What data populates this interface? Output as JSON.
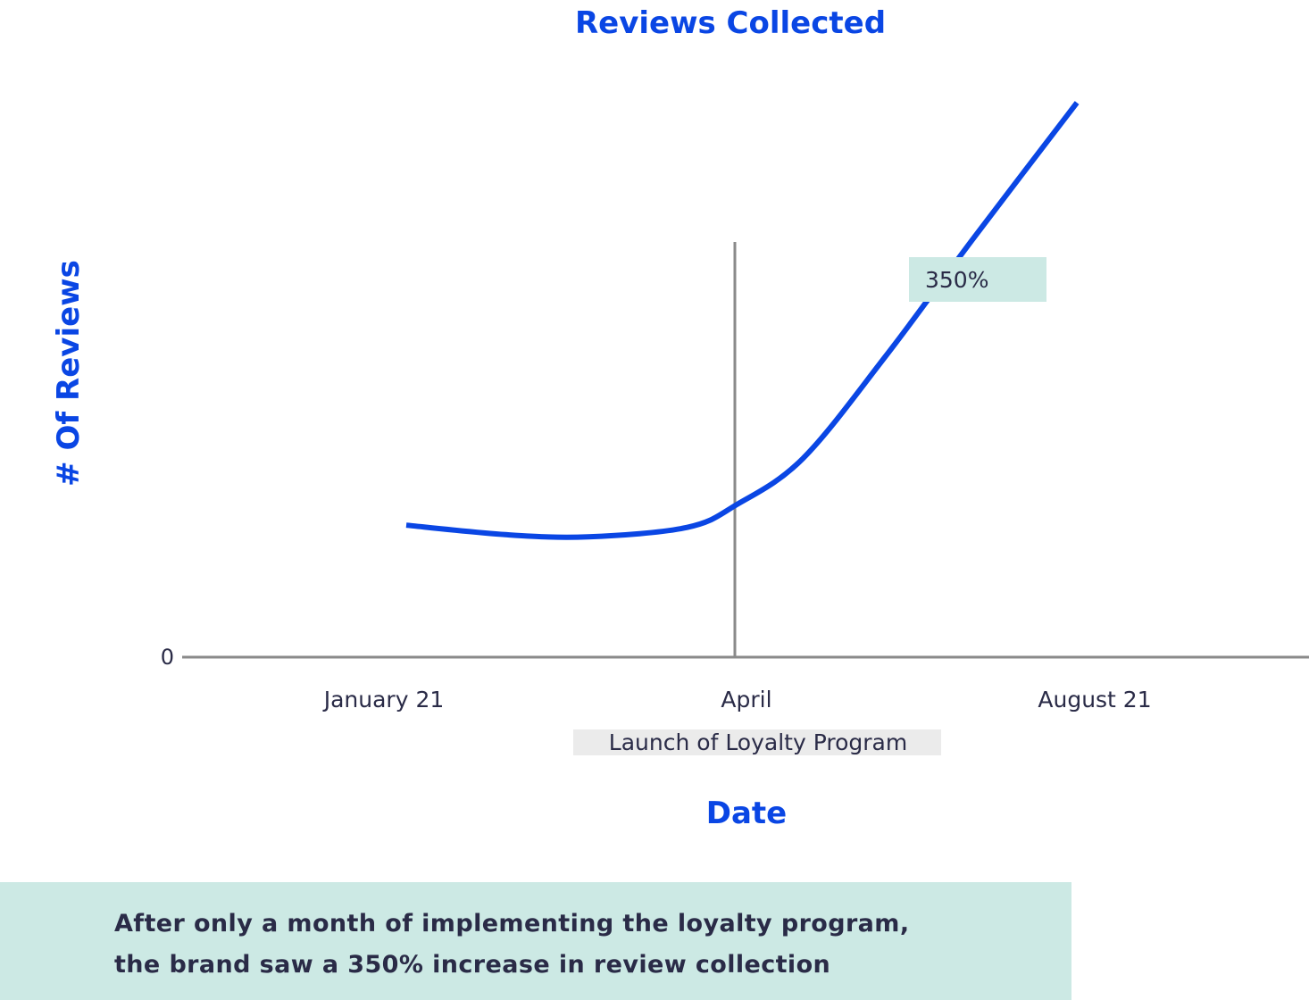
{
  "chart_data": {
    "type": "line",
    "title": "Reviews Collected",
    "xlabel": "Date",
    "ylabel": "# Of Reviews",
    "x_ticks": [
      "January 21",
      "April",
      "August 21"
    ],
    "y_ticks": [
      "0"
    ],
    "ylim": [
      0,
      100
    ],
    "grid": false,
    "legend": "none",
    "series": [
      {
        "color": "#0a46e4",
        "points": [
          {
            "x": 0.0,
            "y": 23.8
          },
          {
            "x": 0.3,
            "y": 22.1
          },
          {
            "x": 0.55,
            "y": 21.7
          },
          {
            "x": 0.85,
            "y": 23.4
          },
          {
            "x": 1.0,
            "y": 27.5
          },
          {
            "x": 1.2,
            "y": 35.8
          },
          {
            "x": 1.45,
            "y": 54.2
          },
          {
            "x": 1.72,
            "y": 75.8
          },
          {
            "x": 2.03,
            "y": 100.0
          }
        ]
      }
    ],
    "annotations": {
      "marker_label": "Launch of Loyalty Program",
      "growth_label": "350%"
    },
    "colors": {
      "accent": "#0a46e4",
      "axis": "#8a8a8a",
      "annotation_bg": "#cce9e4",
      "marker_label_bg": "#ebebeb",
      "text_dark": "#2a2b47"
    }
  },
  "summary": {
    "line1": "After only a month of implementing the loyalty program,",
    "line2": "the brand saw a 350% increase in review collection"
  }
}
